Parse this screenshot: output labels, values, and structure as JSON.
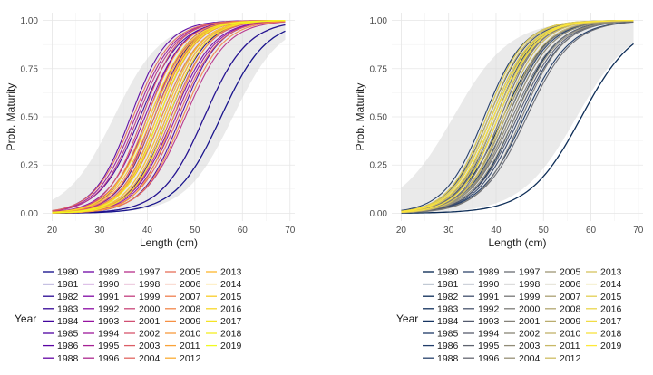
{
  "chart_data": [
    {
      "type": "line",
      "panel": "left",
      "palette": "plasma",
      "title": "",
      "xlabel": "Length (cm)",
      "ylabel": "Prob. Maturity",
      "xlim": [
        18,
        71
      ],
      "ylim": [
        -0.04,
        1.04
      ],
      "x_ticks": [
        20,
        30,
        40,
        50,
        60,
        70
      ],
      "y_ticks": [
        0.0,
        0.25,
        0.5,
        0.75,
        1.0
      ],
      "y_tick_labels": [
        "0.00",
        "0.25",
        "0.50",
        "0.75",
        "1.00"
      ],
      "x_range": [
        20,
        69
      ],
      "grid": true,
      "confidence_bands": true,
      "curve_shape": "logistic",
      "legend": {
        "title": "Year",
        "placement": "bottom",
        "columns": [
          [
            "1980",
            "1981",
            "1982",
            "1983",
            "1984",
            "1985",
            "1986",
            "1988"
          ],
          [
            "1989",
            "1990",
            "1991",
            "1992",
            "1993",
            "1994",
            "1995",
            "1996"
          ],
          [
            "1997",
            "1998",
            "1999",
            "2000",
            "2001",
            "2002",
            "2003",
            "2004"
          ],
          [
            "2005",
            "2006",
            "2007",
            "2008",
            "2009",
            "2010",
            "2011",
            "2012"
          ],
          [
            "2013",
            "2014",
            "2015",
            "2016",
            "2017",
            "2018",
            "2019"
          ]
        ]
      },
      "series_params": {
        "l50": [
          44.5,
          41.5,
          38.5,
          47.0,
          36.5,
          43.0,
          40.0,
          45.5,
          39.5,
          42.5,
          46.0,
          37.5,
          44.0,
          41.0,
          48.0,
          38.0,
          43.5,
          40.5,
          45.0,
          39.0,
          42.0,
          46.5,
          37.0,
          44.5,
          41.5,
          47.5,
          40.0,
          43.0,
          45.5,
          42.5,
          41.0,
          44.0,
          42.0,
          43.5,
          40.5,
          44.5,
          42.5,
          41.5,
          43.0
        ],
        "slope": [
          0.25,
          0.26,
          0.24,
          0.25,
          0.26,
          0.25,
          0.27,
          0.24,
          0.25,
          0.26,
          0.24,
          0.25,
          0.26,
          0.27,
          0.23,
          0.25,
          0.26,
          0.24,
          0.25,
          0.27,
          0.26,
          0.24,
          0.25,
          0.26,
          0.25,
          0.24,
          0.26,
          0.25,
          0.27,
          0.26,
          0.25,
          0.26,
          0.27,
          0.26,
          0.25,
          0.26,
          0.27,
          0.26,
          0.25
        ]
      },
      "outlier_series": [
        {
          "name": "1980",
          "l50": 55.5,
          "slope": 0.21
        },
        {
          "name": "1981",
          "l50": 52.0,
          "slope": 0.22
        }
      ],
      "band": {
        "l50_low": 33.0,
        "l50_high": 58.0,
        "slope": 0.2
      }
    },
    {
      "type": "line",
      "panel": "right",
      "palette": "cividis",
      "title": "",
      "xlabel": "Length (cm)",
      "ylabel": "Prob. Maturity",
      "xlim": [
        18,
        71
      ],
      "ylim": [
        -0.04,
        1.04
      ],
      "x_ticks": [
        20,
        30,
        40,
        50,
        60,
        70
      ],
      "y_ticks": [
        0.0,
        0.25,
        0.5,
        0.75,
        1.0
      ],
      "y_tick_labels": [
        "0.00",
        "0.25",
        "0.50",
        "0.75",
        "1.00"
      ],
      "x_range": [
        20,
        69
      ],
      "grid": true,
      "confidence_bands": true,
      "curve_shape": "logistic",
      "legend": {
        "title": "Year",
        "placement": "bottom",
        "columns": [
          [
            "1980",
            "1981",
            "1982",
            "1983",
            "1984",
            "1985",
            "1986",
            "1988"
          ],
          [
            "1989",
            "1990",
            "1991",
            "1992",
            "1993",
            "1994",
            "1995",
            "1996"
          ],
          [
            "1997",
            "1998",
            "1999",
            "2000",
            "2001",
            "2002",
            "2003",
            "2004"
          ],
          [
            "2005",
            "2006",
            "2007",
            "2008",
            "2009",
            "2010",
            "2011",
            "2012"
          ],
          [
            "2013",
            "2014",
            "2015",
            "2016",
            "2017",
            "2018",
            "2019"
          ]
        ]
      },
      "series_params": {
        "l50": [
          41.5,
          44.0,
          39.0,
          46.0,
          37.5,
          42.5,
          40.0,
          45.0,
          38.5,
          43.0,
          41.0,
          44.5,
          39.5,
          42.0,
          46.5,
          38.0,
          43.5,
          40.5,
          45.5,
          41.0,
          42.5,
          44.0,
          39.5,
          43.0,
          40.0,
          41.5,
          39.0,
          40.5,
          42.0,
          38.5,
          40.0,
          41.5,
          39.5,
          40.5,
          38.0,
          39.0,
          40.5,
          39.5,
          41.0
        ],
        "slope": [
          0.22,
          0.23,
          0.24,
          0.21,
          0.24,
          0.23,
          0.25,
          0.22,
          0.24,
          0.23,
          0.25,
          0.22,
          0.24,
          0.23,
          0.21,
          0.25,
          0.22,
          0.24,
          0.23,
          0.25,
          0.24,
          0.22,
          0.25,
          0.23,
          0.24,
          0.25,
          0.24,
          0.25,
          0.24,
          0.25,
          0.24,
          0.25,
          0.24,
          0.25,
          0.25,
          0.24,
          0.25,
          0.24,
          0.25
        ]
      },
      "outlier_series": [
        {
          "name": "1980",
          "l50": 58.0,
          "slope": 0.18
        }
      ],
      "band": {
        "l50_low": 31.0,
        "l50_high": 57.0,
        "slope": 0.17
      }
    }
  ]
}
